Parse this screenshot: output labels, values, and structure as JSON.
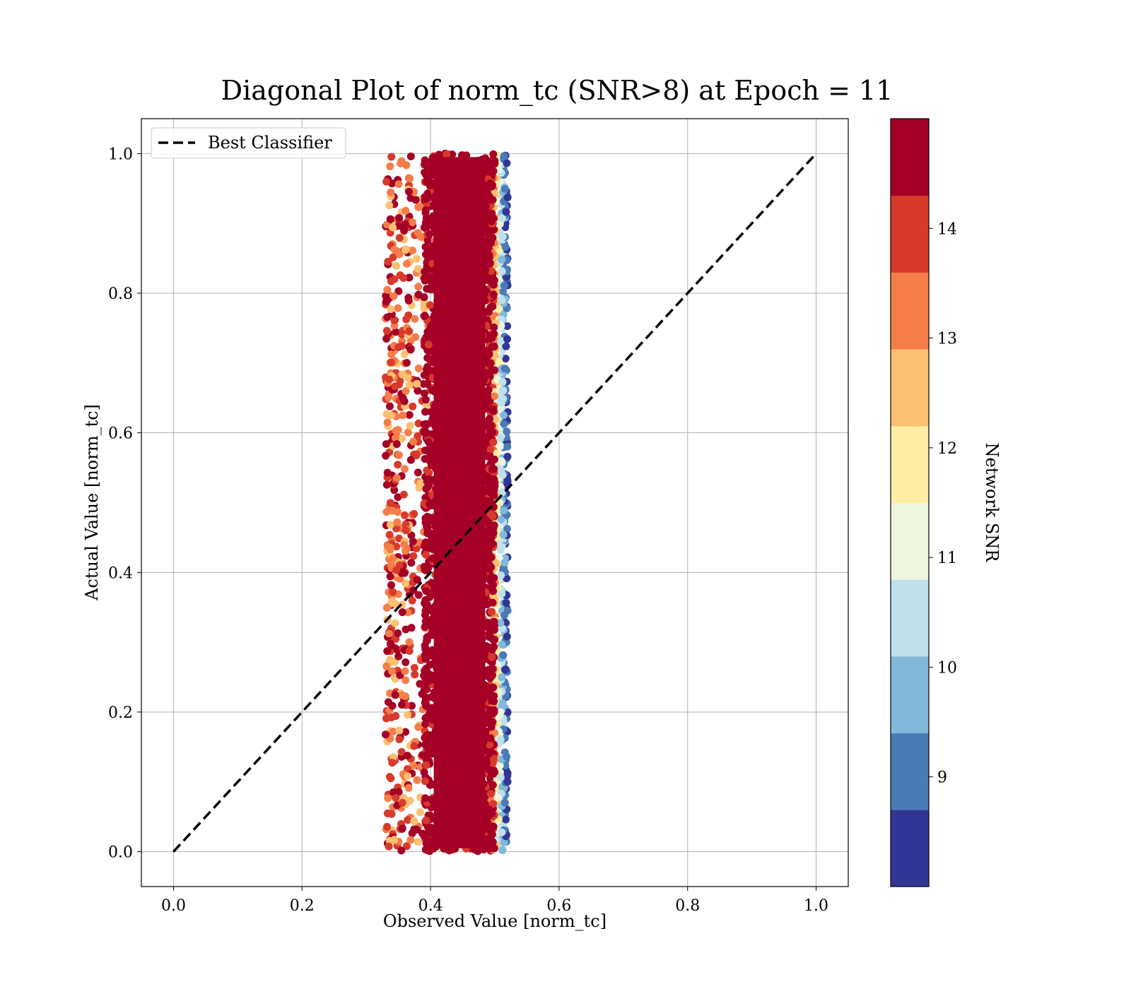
{
  "chart_data": {
    "type": "scatter",
    "title": "Diagonal Plot of norm_tc (SNR>8) at Epoch = 11",
    "xlabel": "Observed Value [norm_tc]",
    "ylabel": "Actual Value [norm_tc]",
    "xlim": [
      -0.05,
      1.05
    ],
    "ylim": [
      -0.05,
      1.05
    ],
    "xticks": [
      "0.0",
      "0.2",
      "0.4",
      "0.6",
      "0.8",
      "1.0"
    ],
    "yticks": [
      "0.0",
      "0.2",
      "0.4",
      "0.6",
      "0.8",
      "1.0"
    ],
    "grid": true,
    "legend": {
      "placement": "upper-left",
      "entries": [
        "Best Classifier"
      ]
    },
    "reference_line": {
      "name": "Best Classifier",
      "style": "dashed",
      "color": "#000000",
      "x": [
        0.0,
        1.0
      ],
      "y": [
        0.0,
        1.0
      ]
    },
    "scatter_cloud": {
      "x_core_range": [
        0.4,
        0.49
      ],
      "x_outer_range": [
        0.3,
        0.52
      ],
      "y_range": [
        0.0,
        1.0
      ],
      "dominant_snr_band": "14+"
    },
    "colorbar": {
      "label": "Network SNR",
      "ticks": [
        "9",
        "10",
        "11",
        "12",
        "13",
        "14"
      ],
      "range": [
        8.0,
        15.0
      ],
      "bands": [
        {
          "from": 8.0,
          "to": 8.7,
          "color": "#313695"
        },
        {
          "from": 8.7,
          "to": 9.4,
          "color": "#4a7bb7"
        },
        {
          "from": 9.4,
          "to": 10.1,
          "color": "#82b8d8"
        },
        {
          "from": 10.1,
          "to": 10.8,
          "color": "#c0e1ec"
        },
        {
          "from": 10.8,
          "to": 11.5,
          "color": "#eef6df"
        },
        {
          "from": 11.5,
          "to": 12.2,
          "color": "#fdeea4"
        },
        {
          "from": 12.2,
          "to": 12.9,
          "color": "#fdbf71"
        },
        {
          "from": 12.9,
          "to": 13.6,
          "color": "#f47d4a"
        },
        {
          "from": 13.6,
          "to": 14.3,
          "color": "#d73a2c"
        },
        {
          "from": 14.3,
          "to": 15.0,
          "color": "#a50026"
        }
      ]
    }
  }
}
